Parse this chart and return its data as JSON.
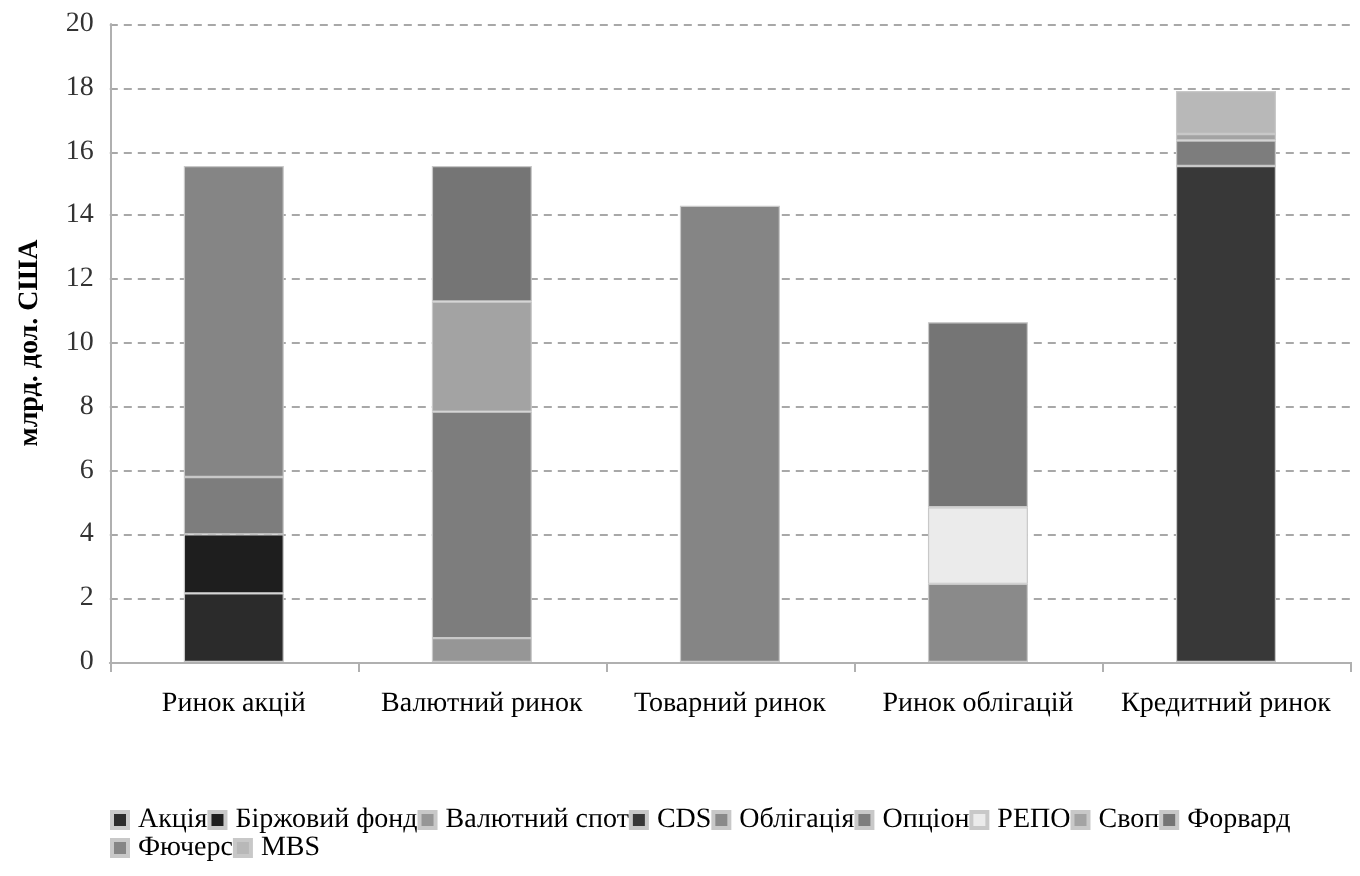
{
  "chart_data": {
    "type": "bar",
    "stacked": true,
    "ylabel": "млрд. дол. США",
    "categories": [
      "Ринок акцій",
      "Валютний ринок",
      "Товарний ринок",
      "Ринок облігацій",
      "Кредитний ринок"
    ],
    "ylim": [
      0,
      20
    ],
    "yticks": [
      0,
      2,
      4,
      6,
      8,
      10,
      12,
      14,
      16,
      18,
      20
    ],
    "grid": "y",
    "legend": "bottom",
    "series": [
      {
        "name": "Акція",
        "color": "#2b2b2b",
        "values": [
          2.15,
          null,
          null,
          null,
          null
        ]
      },
      {
        "name": "Біржовий фонд",
        "color": "#1e1e1e",
        "values": [
          1.85,
          null,
          null,
          null,
          null
        ]
      },
      {
        "name": "Валютний спот",
        "color": "#969696",
        "values": [
          null,
          0.75,
          null,
          null,
          null
        ]
      },
      {
        "name": "CDS",
        "color": "#383838",
        "values": [
          null,
          null,
          null,
          null,
          15.55
        ]
      },
      {
        "name": "Облігація",
        "color": "#8a8a8a",
        "values": [
          null,
          null,
          null,
          2.45,
          null
        ]
      },
      {
        "name": "Опціон",
        "color": "#7d7d7d",
        "values": [
          1.8,
          7.1,
          null,
          null,
          0.8
        ]
      },
      {
        "name": "РЕПО",
        "color": "#ebebeb",
        "values": [
          null,
          null,
          null,
          2.4,
          null
        ]
      },
      {
        "name": "Своп",
        "color": "#a3a3a3",
        "values": [
          null,
          3.45,
          null,
          null,
          0.2
        ]
      },
      {
        "name": "Форвард",
        "color": "#757575",
        "values": [
          null,
          4.25,
          null,
          5.8,
          null
        ]
      },
      {
        "name": "Фючерс",
        "color": "#858585",
        "values": [
          9.75,
          null,
          14.3,
          null,
          null
        ]
      },
      {
        "name": "MBS",
        "color": "#b8b8b8",
        "values": [
          null,
          null,
          null,
          null,
          1.35
        ]
      }
    ]
  }
}
